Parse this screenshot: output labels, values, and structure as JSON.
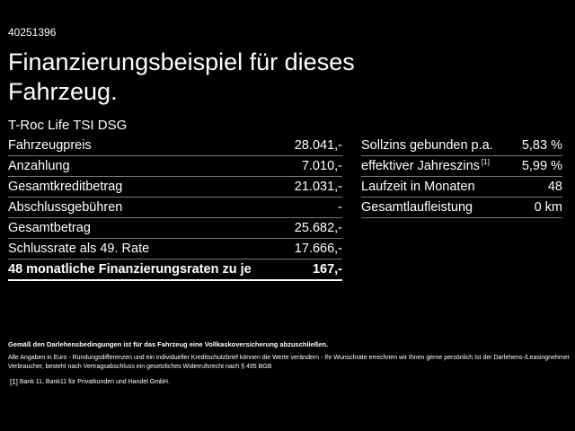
{
  "ref_id": "40251396",
  "headline": "Finanzierungsbeispiel für dieses Fahrzeug.",
  "model": "T-Roc Life TSI DSG",
  "left_table": [
    {
      "label": "Fahrzeugpreis",
      "value": "28.041,-"
    },
    {
      "label": "Anzahlung",
      "value": "7.010,-"
    },
    {
      "label": "Gesamtkreditbetrag",
      "value": "21.031,-"
    },
    {
      "label": "Abschlussgebühren",
      "value": "-"
    },
    {
      "label": "Gesamtbetrag",
      "value": "25.682,-"
    },
    {
      "label": "Schlussrate als 49. Rate",
      "value": "17.666,-"
    },
    {
      "label": "48 monatliche Finanzierungsraten zu je",
      "value": "167,-"
    }
  ],
  "right_table": [
    {
      "label": "Sollzins gebunden p.a.",
      "value": "5,83 %"
    },
    {
      "label": "effektiver Jahreszins",
      "sup": "[1]",
      "value": "5,99 %"
    },
    {
      "label": "Laufzeit in Monaten",
      "value": "48"
    },
    {
      "label": "Gesamtlaufleistung",
      "value": "0 km"
    }
  ],
  "note_bold": "Gemäß den Darlehensbedingungen ist für das Fahrzeug eine Vollkaskoversicherung abzuschließen.",
  "note": "Alle Angaben in Euro - Rundungsdifferenzen und ein individueller Kreditschutzbrief können die Werte verändern - Ihr Wunschrate errechnen wir Ihnen gerne persönlich Ist der Darlehens-/Leasingnehmer Verbraucher, besteht nach Vertragsabschluss ein gesetzliches Widerrufsrecht nach § 495 BGB",
  "footnote_marker": "[1]",
  "footnote": "Bank 11, Bank11 für Privatkunden und Handel GmbH."
}
